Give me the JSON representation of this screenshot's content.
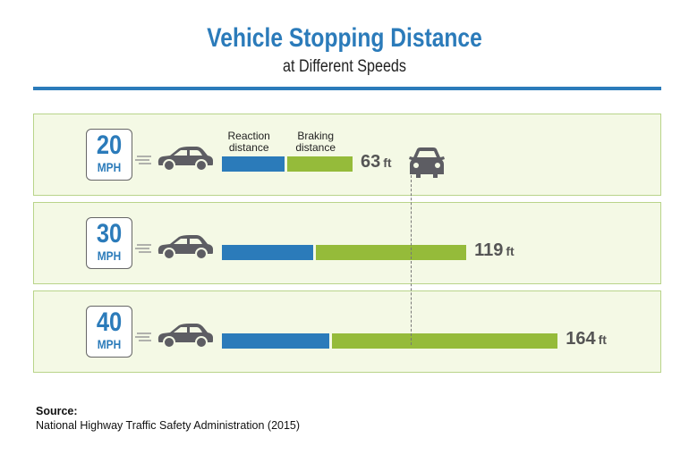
{
  "chart_data": {
    "type": "bar",
    "orientation": "horizontal",
    "stacked": true,
    "title": "Vehicle Stopping Distance",
    "subtitle": "at Different Speeds",
    "categories": [
      "20",
      "30",
      "40"
    ],
    "category_unit": "MPH",
    "series": [
      {
        "name": "Reaction distance",
        "color": "#2b7bba",
        "values": [
          31,
          45,
          53
        ]
      },
      {
        "name": "Braking distance",
        "color": "#95bb3a",
        "values": [
          32,
          74,
          111
        ]
      }
    ],
    "totals": [
      63,
      119,
      164
    ],
    "total_unit": "ft",
    "legend": "top, above first bar",
    "grid": false
  },
  "source": {
    "label": "Source:",
    "text": "National Highway Traffic Safety Administration (2015)"
  },
  "icons": [
    "speed-lines-icon",
    "car-side-icon",
    "car-front-icon"
  ],
  "colors": {
    "accent": "#2b7bba",
    "green": "#95bb3a",
    "row_bg": "#f4f9e5",
    "car": "#5d5d63"
  }
}
